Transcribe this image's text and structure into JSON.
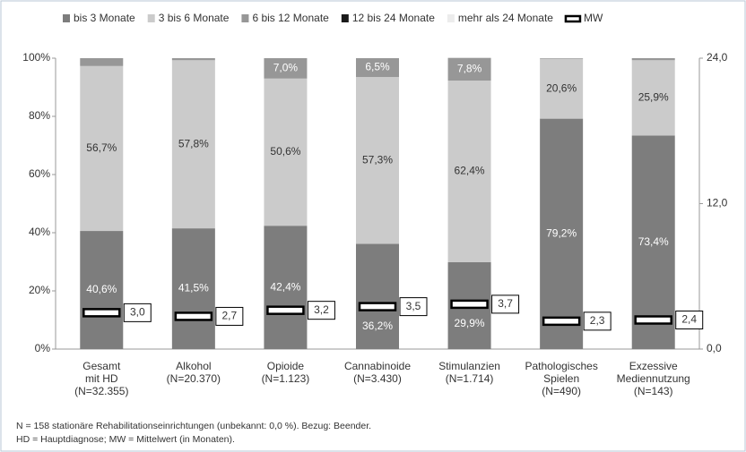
{
  "chart_data": {
    "type": "stacked_bar",
    "categories": [
      [
        "Gesamt",
        "mit HD",
        "(N=32.355)"
      ],
      [
        "Alkohol",
        "(N=20.370)"
      ],
      [
        "Opioide",
        "(N=1.123)"
      ],
      [
        "Cannabinoide",
        "(N=3.430)"
      ],
      [
        "Stimulanzien",
        "(N=1.714)"
      ],
      [
        "Pathologisches",
        "Spielen",
        "(N=490)"
      ],
      [
        "Exzessive",
        "Mediennutzung",
        "(N=143)"
      ]
    ],
    "series": [
      {
        "name": "bis 3 Monate",
        "color": "#7d7d7d",
        "values": [
          40.6,
          41.5,
          42.4,
          36.2,
          29.9,
          79.2,
          73.4
        ],
        "value_labels": [
          "40,6%",
          "41,5%",
          "42,4%",
          "36,2%",
          "29,9%",
          "79,2%",
          "73,4%"
        ]
      },
      {
        "name": "3 bis 6 Monate",
        "color": "#cbcbcb",
        "values": [
          56.7,
          57.8,
          50.6,
          57.3,
          62.4,
          20.6,
          25.9
        ],
        "value_labels": [
          "56,7%",
          "57,8%",
          "50,6%",
          "57,3%",
          "62,4%",
          "20,6%",
          "25,9%"
        ]
      },
      {
        "name": "6 bis 12 Monate",
        "color": "#979797",
        "values": [
          2.7,
          0.7,
          7.0,
          6.5,
          7.8,
          0.2,
          0.7
        ],
        "value_labels": [
          null,
          null,
          "7,0%",
          "6,5%",
          "7,8%",
          null,
          null
        ]
      },
      {
        "name": "12 bis 24 Monate",
        "color": "#1a1a1a",
        "values": [
          0,
          0,
          0,
          0,
          0,
          0,
          0
        ]
      },
      {
        "name": "mehr als 24 Monate",
        "color": "#ececec",
        "values": [
          0,
          0,
          0,
          0,
          0,
          0,
          0
        ]
      },
      {
        "name": "MW",
        "type": "marker",
        "axis": "y2",
        "color": "#000000",
        "values": [
          3.0,
          2.7,
          3.2,
          3.5,
          3.7,
          2.3,
          2.4
        ],
        "value_labels": [
          "3,0",
          "2,7",
          "3,2",
          "3,5",
          "3,7",
          "2,3",
          "2,4"
        ]
      }
    ],
    "ylim": [
      0,
      100
    ],
    "yticks": [
      {
        "value": 0,
        "label": "0%"
      },
      {
        "value": 20,
        "label": "20%"
      },
      {
        "value": 40,
        "label": "40%"
      },
      {
        "value": 60,
        "label": "60%"
      },
      {
        "value": 80,
        "label": "80%"
      },
      {
        "value": 100,
        "label": "100%"
      }
    ],
    "y2lim": [
      0,
      24
    ],
    "y2ticks": [
      {
        "value": 0,
        "label": "0,0"
      },
      {
        "value": 12,
        "label": "12,0"
      },
      {
        "value": 24,
        "label": "24,0"
      }
    ],
    "legend": "top",
    "notes": [
      "N = 158 stationäre Rehabilitationseinrichtungen (unbekannt: 0,0 %). Bezug: Beender.",
      "HD = Hauptdiagnose; MW = Mittelwert (in Monaten)."
    ]
  }
}
